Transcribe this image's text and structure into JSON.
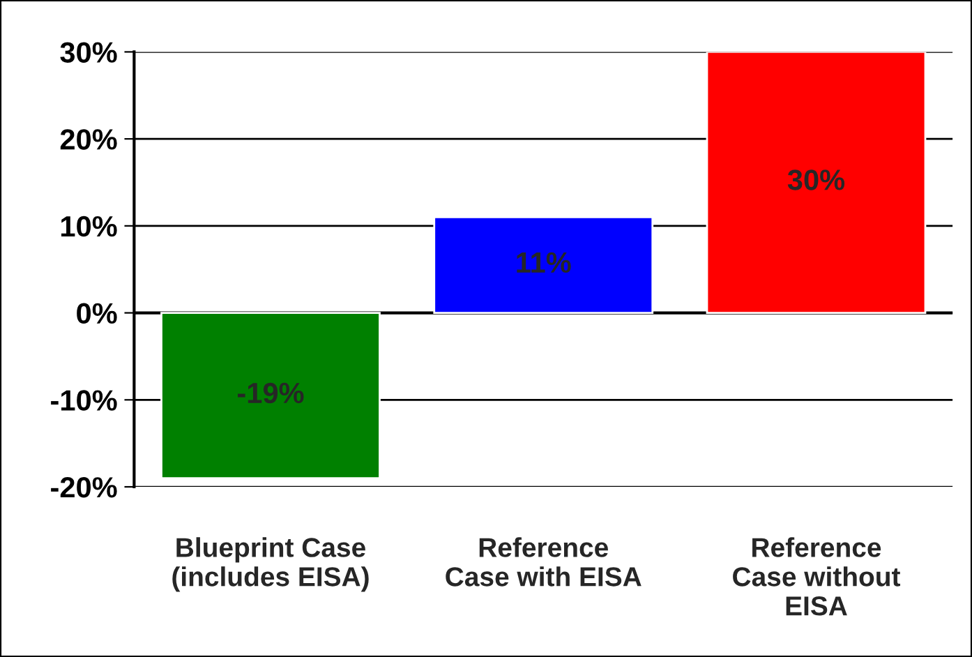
{
  "chart_data": {
    "type": "bar",
    "categories": [
      "Blueprint Case\n(includes EISA)",
      "Reference\nCase with EISA",
      "Reference\nCase without\nEISA"
    ],
    "values": [
      -19,
      11,
      30
    ],
    "colors": [
      "#008000",
      "#0000ff",
      "#ff0000"
    ],
    "value_labels": [
      "-19%",
      "11%",
      "30%"
    ],
    "ylim": [
      -20,
      30
    ],
    "yticks": [
      {
        "value": -20,
        "label": "-20%"
      },
      {
        "value": -10,
        "label": "-10%"
      },
      {
        "value": 0,
        "label": "0%"
      },
      {
        "value": 10,
        "label": "10%"
      },
      {
        "value": 20,
        "label": "20%"
      },
      {
        "value": 30,
        "label": "30%"
      }
    ],
    "grid": "y"
  }
}
